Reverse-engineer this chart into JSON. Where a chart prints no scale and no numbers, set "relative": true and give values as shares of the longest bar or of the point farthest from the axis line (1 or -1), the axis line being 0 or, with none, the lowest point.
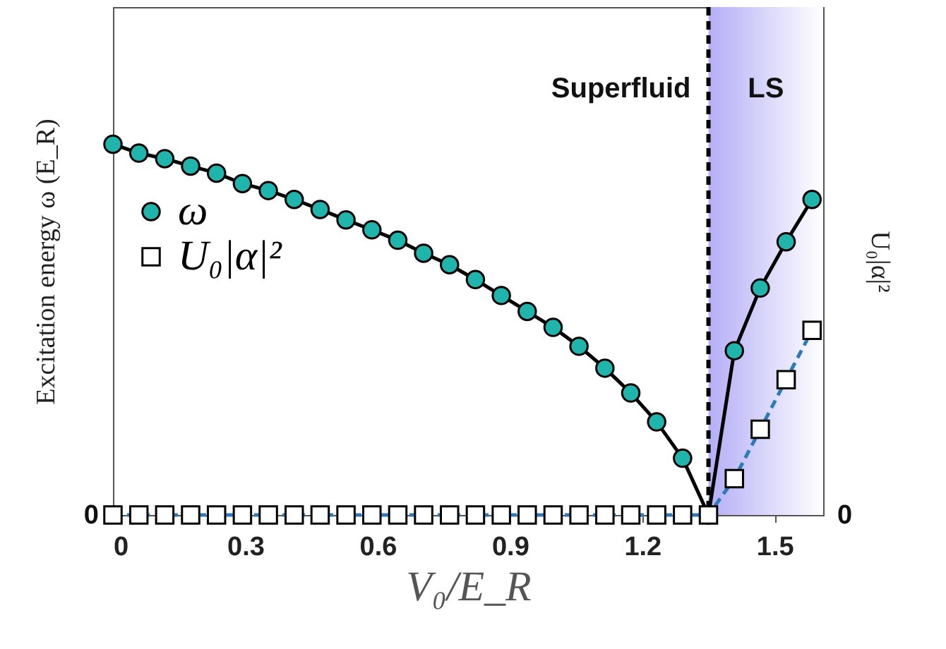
{
  "chart_data": {
    "type": "line",
    "relative": true,
    "xlabel": "V₀/E_R",
    "ylabel": "Excitation energy ω (E_R)",
    "y2label": "U₀|α|²",
    "xlim": [
      0,
      1.61
    ],
    "xticks": [
      0,
      0.3,
      0.6,
      0.9,
      1.2,
      1.5
    ],
    "x": [
      0,
      0.0587,
      0.1174,
      0.1761,
      0.2348,
      0.2935,
      0.3522,
      0.4109,
      0.4696,
      0.5283,
      0.587,
      0.6457,
      0.7043,
      0.763,
      0.8217,
      0.8804,
      0.9391,
      0.9978,
      1.0565,
      1.1152,
      1.1739,
      1.2326,
      1.2913,
      1.35,
      1.4087,
      1.4674,
      1.5261,
      1.5848
    ],
    "series": [
      {
        "name": "ω",
        "color": "#1fb5ac",
        "marker": "circle",
        "line_style": "solid",
        "values": [
          1.0,
          0.976,
          0.961,
          0.941,
          0.922,
          0.894,
          0.875,
          0.851,
          0.824,
          0.796,
          0.769,
          0.741,
          0.706,
          0.675,
          0.635,
          0.592,
          0.549,
          0.506,
          0.455,
          0.396,
          0.329,
          0.251,
          0.153,
          0,
          0.443,
          0.612,
          0.737,
          0.851
        ]
      },
      {
        "name": "U₀|α|²",
        "color": "#2b7bba",
        "marker": "square",
        "line_style": "dashed",
        "values": [
          0,
          0,
          0,
          0,
          0,
          0,
          0,
          0,
          0,
          0,
          0,
          0,
          0,
          0,
          0,
          0,
          0,
          0,
          0,
          0,
          0,
          0,
          0,
          0,
          0.098,
          0.231,
          0.365,
          0.498
        ]
      }
    ],
    "ref_lines": [
      {
        "axis": "x",
        "value": 1.35,
        "color": "#000000",
        "line_style": "dashed"
      }
    ],
    "bands": [
      {
        "axis": "x",
        "from": 1.35,
        "to": 1.61,
        "color": "#b4aef6"
      }
    ],
    "annotations": [
      "Superfluid",
      "LS",
      "0",
      "0"
    ],
    "legend": "left",
    "grid": false
  }
}
